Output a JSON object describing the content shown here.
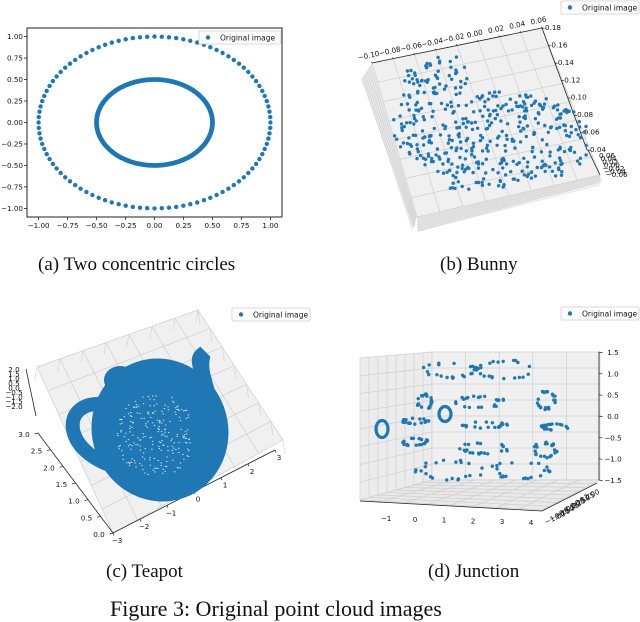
{
  "figure": {
    "caption": "Figure 3: Original point cloud images",
    "accent_color": "#1f77b4",
    "pane_color": "#f0f0f0",
    "grid_color": "#cfcfcf"
  },
  "subfigures": [
    {
      "id": "a",
      "caption": "(a) Two concentric circles"
    },
    {
      "id": "b",
      "caption": "(b) Bunny"
    },
    {
      "id": "c",
      "caption": "(c) Teapot"
    },
    {
      "id": "d",
      "caption": "(d) Junction"
    }
  ],
  "chart_data": [
    {
      "id": "a",
      "type": "scatter",
      "title": "",
      "legend": [
        "Original image"
      ],
      "legend_position": "upper right",
      "xlim": [
        -1.1,
        1.1
      ],
      "ylim": [
        -1.1,
        1.1
      ],
      "xticks": [
        "-1.00",
        "-0.75",
        "-0.50",
        "-0.25",
        "0.00",
        "0.25",
        "0.50",
        "0.75",
        "1.00"
      ],
      "yticks": [
        "1.00",
        "0.75",
        "0.50",
        "0.25",
        "0.00",
        "-0.25",
        "-0.50",
        "-0.75",
        "-1.00"
      ],
      "grid": false,
      "series": [
        {
          "name": "Original image",
          "shape": "circle",
          "cx": 0,
          "cy": 0,
          "r": 1.0,
          "n_points": 100
        },
        {
          "name": "Original image",
          "shape": "circle",
          "cx": 0,
          "cy": 0,
          "r": 0.5,
          "n_points": 1000
        }
      ]
    },
    {
      "id": "b",
      "type": "scatter3d",
      "title": "",
      "legend": [
        "Original image"
      ],
      "legend_position": "upper right",
      "xticks": [
        "-0.10",
        "-0.08",
        "-0.06",
        "-0.04",
        "-0.02",
        "0.00",
        "0.02",
        "0.04",
        "0.06"
      ],
      "zticks": [
        "0.18",
        "0.16",
        "0.14",
        "0.12",
        "0.10",
        "0.08",
        "0.06",
        "0.04"
      ],
      "yticks": [
        "0.06",
        "0.04",
        "0.02",
        "0.00",
        "-0.02",
        "-0.04",
        "-0.06"
      ],
      "grid": true,
      "description": "Stanford bunny point cloud, top-down oblique view"
    },
    {
      "id": "c",
      "type": "scatter3d",
      "title": "",
      "legend": [
        "Original image"
      ],
      "legend_position": "upper right",
      "xticks": [
        "-3",
        "-2",
        "-1",
        "0",
        "1",
        "2",
        "3"
      ],
      "yticks": [
        "0.0",
        "0.5",
        "1.0",
        "1.5",
        "2.0",
        "2.5",
        "3.0"
      ],
      "zticks": [
        "2.0",
        "1.5",
        "1.0",
        "0.5",
        "0.0",
        "-0.5",
        "-1.0",
        "-1.5",
        "-2.0"
      ],
      "grid": true,
      "description": "Utah teapot dense point cloud, top-down oblique view"
    },
    {
      "id": "d",
      "type": "scatter3d",
      "title": "",
      "legend": [
        "Original image"
      ],
      "legend_position": "upper right",
      "xticks": [
        "-1",
        "0",
        "1",
        "2",
        "3",
        "4"
      ],
      "zticks": [
        "1.5",
        "1.0",
        "0.5",
        "0.0",
        "-0.5",
        "-1.0",
        "-1.5"
      ],
      "yticks": [
        "-1.00",
        "-0.75",
        "-0.50",
        "-0.25",
        "0.00",
        "0.25",
        "0.50",
        "0.75",
        "1.00"
      ],
      "grid": true,
      "description": "Junction: two small rings and clustered torus-like point sets, near-frontal view"
    }
  ]
}
